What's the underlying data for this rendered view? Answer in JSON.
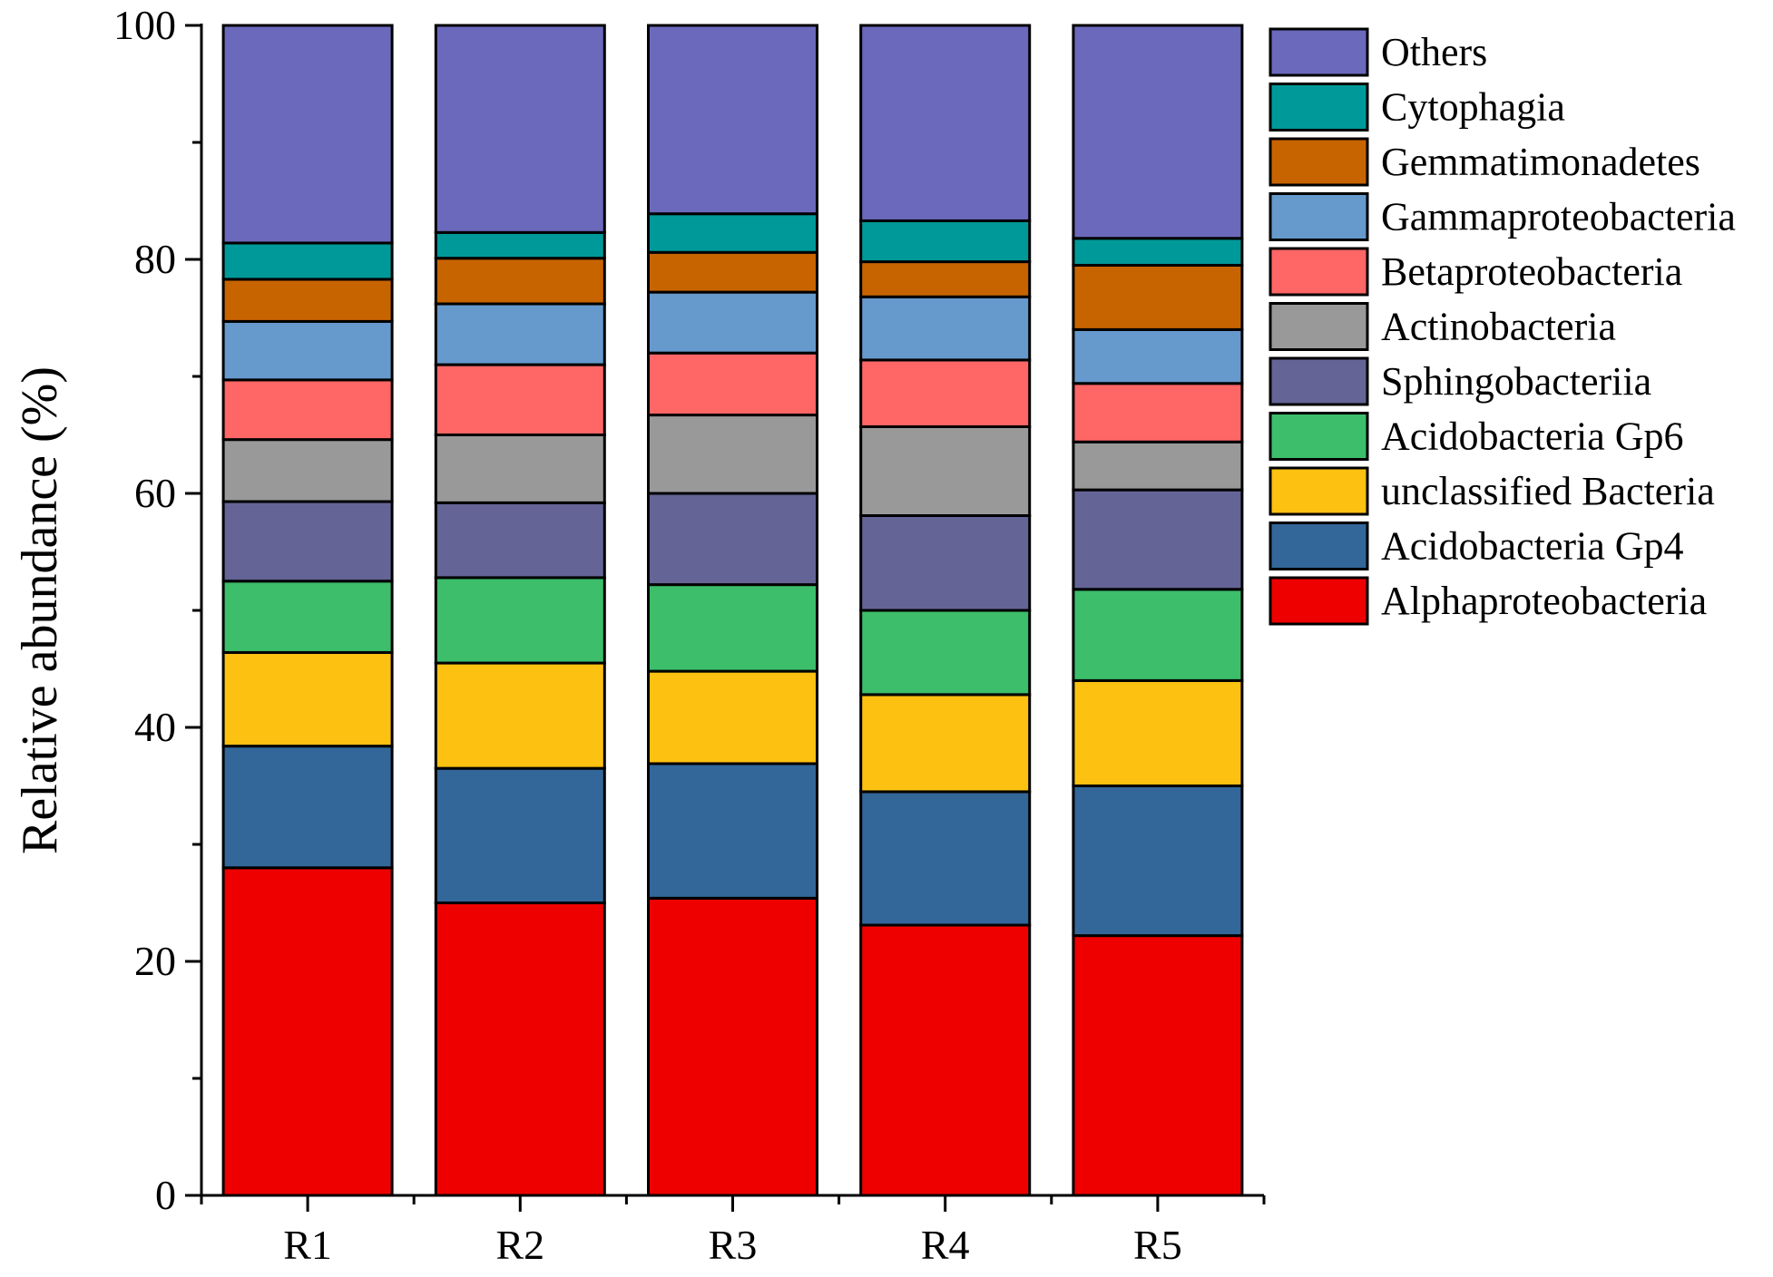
{
  "chart_data": {
    "type": "bar",
    "stacked": true,
    "title": "",
    "xlabel": "",
    "ylabel": "Relative abundance (%)",
    "ylim": [
      0,
      100
    ],
    "yticks": [
      "0",
      "20",
      "40",
      "60",
      "80",
      "100"
    ],
    "categories": [
      "R1",
      "R2",
      "R3",
      "R4",
      "R5"
    ],
    "legend_position": "right",
    "series": [
      {
        "name": "Alphaproteobacteria",
        "color": "#ee0000",
        "values": [
          28.0,
          25.0,
          25.4,
          23.1,
          22.2
        ]
      },
      {
        "name": "Acidobacteria Gp4",
        "color": "#336699",
        "values": [
          10.4,
          11.5,
          11.5,
          11.4,
          12.8
        ]
      },
      {
        "name": "unclassified Bacteria",
        "color": "#fcc111",
        "values": [
          8.0,
          9.0,
          7.9,
          8.3,
          9.0
        ]
      },
      {
        "name": "Acidobacteria Gp6",
        "color": "#3cbe6a",
        "values": [
          6.1,
          7.3,
          7.4,
          7.2,
          7.8
        ]
      },
      {
        "name": "Sphingobacteriia",
        "color": "#646496",
        "values": [
          6.8,
          6.4,
          7.8,
          8.1,
          8.5
        ]
      },
      {
        "name": "Actinobacteria",
        "color": "#999999",
        "values": [
          5.3,
          5.8,
          6.7,
          7.6,
          4.1
        ]
      },
      {
        "name": "Betaproteobacteria",
        "color": "#ff6666",
        "values": [
          5.1,
          6.0,
          5.3,
          5.7,
          5.0
        ]
      },
      {
        "name": "Gammaproteobacteria",
        "color": "#6699cc",
        "values": [
          5.0,
          5.2,
          5.2,
          5.4,
          4.6
        ]
      },
      {
        "name": "Gemmatimonadetes",
        "color": "#c86400",
        "values": [
          3.6,
          3.9,
          3.4,
          3.0,
          5.5
        ]
      },
      {
        "name": "Cytophagia",
        "color": "#009999",
        "values": [
          3.1,
          2.2,
          3.3,
          3.5,
          2.3
        ]
      },
      {
        "name": "Others",
        "color": "#6b69bb",
        "values": [
          18.6,
          17.7,
          16.1,
          16.7,
          18.2
        ]
      }
    ]
  }
}
